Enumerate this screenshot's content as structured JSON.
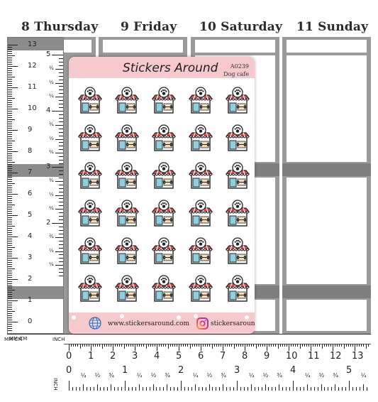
{
  "days": [
    {
      "label": "8 Thursday"
    },
    {
      "label": "9 Friday"
    },
    {
      "label": "10 Saturday"
    },
    {
      "label": "11 Sunday"
    }
  ],
  "sheet": {
    "brand": "Stickers Around",
    "code": "A0239",
    "name": "Dog cafe",
    "website": "www.stickersaround.com",
    "instagram": "stickersaround",
    "sticker_icon": "dog-cafe-icon",
    "rows": 6,
    "cols": 5
  },
  "vruler": {
    "inch_numbers": [
      "5",
      "4",
      "3",
      "2"
    ],
    "cm_numbers": [
      "13",
      "12",
      "11",
      "10",
      "9",
      "8",
      "7",
      "6",
      "5",
      "4",
      "3",
      "2",
      "1",
      "0"
    ],
    "quarter_labels": [
      "¾",
      "½",
      "¼"
    ],
    "unit_label": "MM CM",
    "inch_label": "INCH"
  },
  "hruler": {
    "cm_numbers": [
      "0",
      "1",
      "2",
      "3",
      "4",
      "5",
      "6",
      "7",
      "8",
      "9",
      "10",
      "11",
      "12",
      "13"
    ],
    "cm_label": "MM CM",
    "inch_numbers": [
      "0",
      "1",
      "2",
      "3",
      "4",
      "5"
    ],
    "quarter_labels": [
      "¼",
      "½",
      "¾"
    ],
    "inch_label": "INCH"
  },
  "colors": {
    "sheet_band": "#f6c9cc",
    "planner_gray": "#9a9a9a",
    "awning_red": "#e0474c",
    "window_blue": "#8fd0e0"
  }
}
